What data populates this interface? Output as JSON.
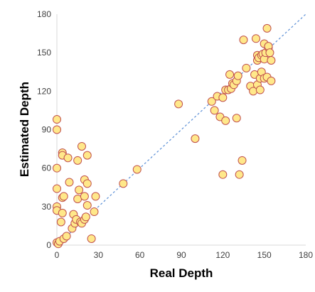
{
  "chart_data": {
    "type": "scatter",
    "title": "",
    "xlabel": "Real Depth",
    "ylabel": "Estimated Depth",
    "xlim": [
      0,
      180
    ],
    "ylim": [
      0,
      180
    ],
    "xticks": [
      0,
      30,
      60,
      90,
      120,
      150,
      180
    ],
    "yticks": [
      0,
      30,
      60,
      90,
      120,
      150,
      180
    ],
    "grid": false,
    "legend": "none",
    "reference_line": {
      "from": [
        0,
        0
      ],
      "to": [
        180,
        180
      ],
      "style": "dashed",
      "color": "#5b8fd6"
    },
    "marker": {
      "fill": "#ffe88a",
      "stroke": "#c0504d"
    },
    "points": [
      [
        0,
        98
      ],
      [
        0,
        90
      ],
      [
        0,
        60
      ],
      [
        0,
        44
      ],
      [
        0,
        30
      ],
      [
        0,
        27
      ],
      [
        0,
        2
      ],
      [
        1,
        1
      ],
      [
        2,
        3
      ],
      [
        3,
        18
      ],
      [
        4,
        25
      ],
      [
        4,
        37
      ],
      [
        5,
        38
      ],
      [
        4,
        72
      ],
      [
        4,
        70
      ],
      [
        5,
        5
      ],
      [
        7,
        7
      ],
      [
        8,
        68
      ],
      [
        9,
        49
      ],
      [
        11,
        13
      ],
      [
        12,
        24
      ],
      [
        13,
        17
      ],
      [
        14,
        20
      ],
      [
        15,
        66
      ],
      [
        15,
        36
      ],
      [
        16,
        43
      ],
      [
        17,
        18
      ],
      [
        18,
        17
      ],
      [
        18,
        77
      ],
      [
        20,
        20
      ],
      [
        20,
        51
      ],
      [
        20,
        38
      ],
      [
        21,
        22
      ],
      [
        22,
        70
      ],
      [
        22,
        48
      ],
      [
        22,
        31
      ],
      [
        25,
        5
      ],
      [
        27,
        26
      ],
      [
        28,
        38
      ],
      [
        48,
        48
      ],
      [
        58,
        59
      ],
      [
        88,
        110
      ],
      [
        100,
        83
      ],
      [
        112,
        112
      ],
      [
        114,
        105
      ],
      [
        116,
        116
      ],
      [
        120,
        115
      ],
      [
        118,
        100
      ],
      [
        120,
        55
      ],
      [
        122,
        97
      ],
      [
        122,
        121
      ],
      [
        124,
        121
      ],
      [
        125,
        133
      ],
      [
        126,
        122
      ],
      [
        127,
        126
      ],
      [
        128,
        125
      ],
      [
        130,
        128
      ],
      [
        130,
        99
      ],
      [
        131,
        132
      ],
      [
        132,
        55
      ],
      [
        134,
        66
      ],
      [
        135,
        160
      ],
      [
        137,
        138
      ],
      [
        140,
        124
      ],
      [
        142,
        120
      ],
      [
        143,
        133
      ],
      [
        144,
        161
      ],
      [
        145,
        148
      ],
      [
        145,
        125
      ],
      [
        145,
        144
      ],
      [
        146,
        146
      ],
      [
        147,
        130
      ],
      [
        147,
        121
      ],
      [
        148,
        135
      ],
      [
        148,
        148
      ],
      [
        149,
        149
      ],
      [
        150,
        130
      ],
      [
        150,
        157
      ],
      [
        150,
        145
      ],
      [
        151,
        150
      ],
      [
        152,
        169
      ],
      [
        152,
        131
      ],
      [
        153,
        154
      ],
      [
        153,
        155
      ],
      [
        154,
        150
      ],
      [
        155,
        128
      ],
      [
        155,
        144
      ]
    ]
  }
}
